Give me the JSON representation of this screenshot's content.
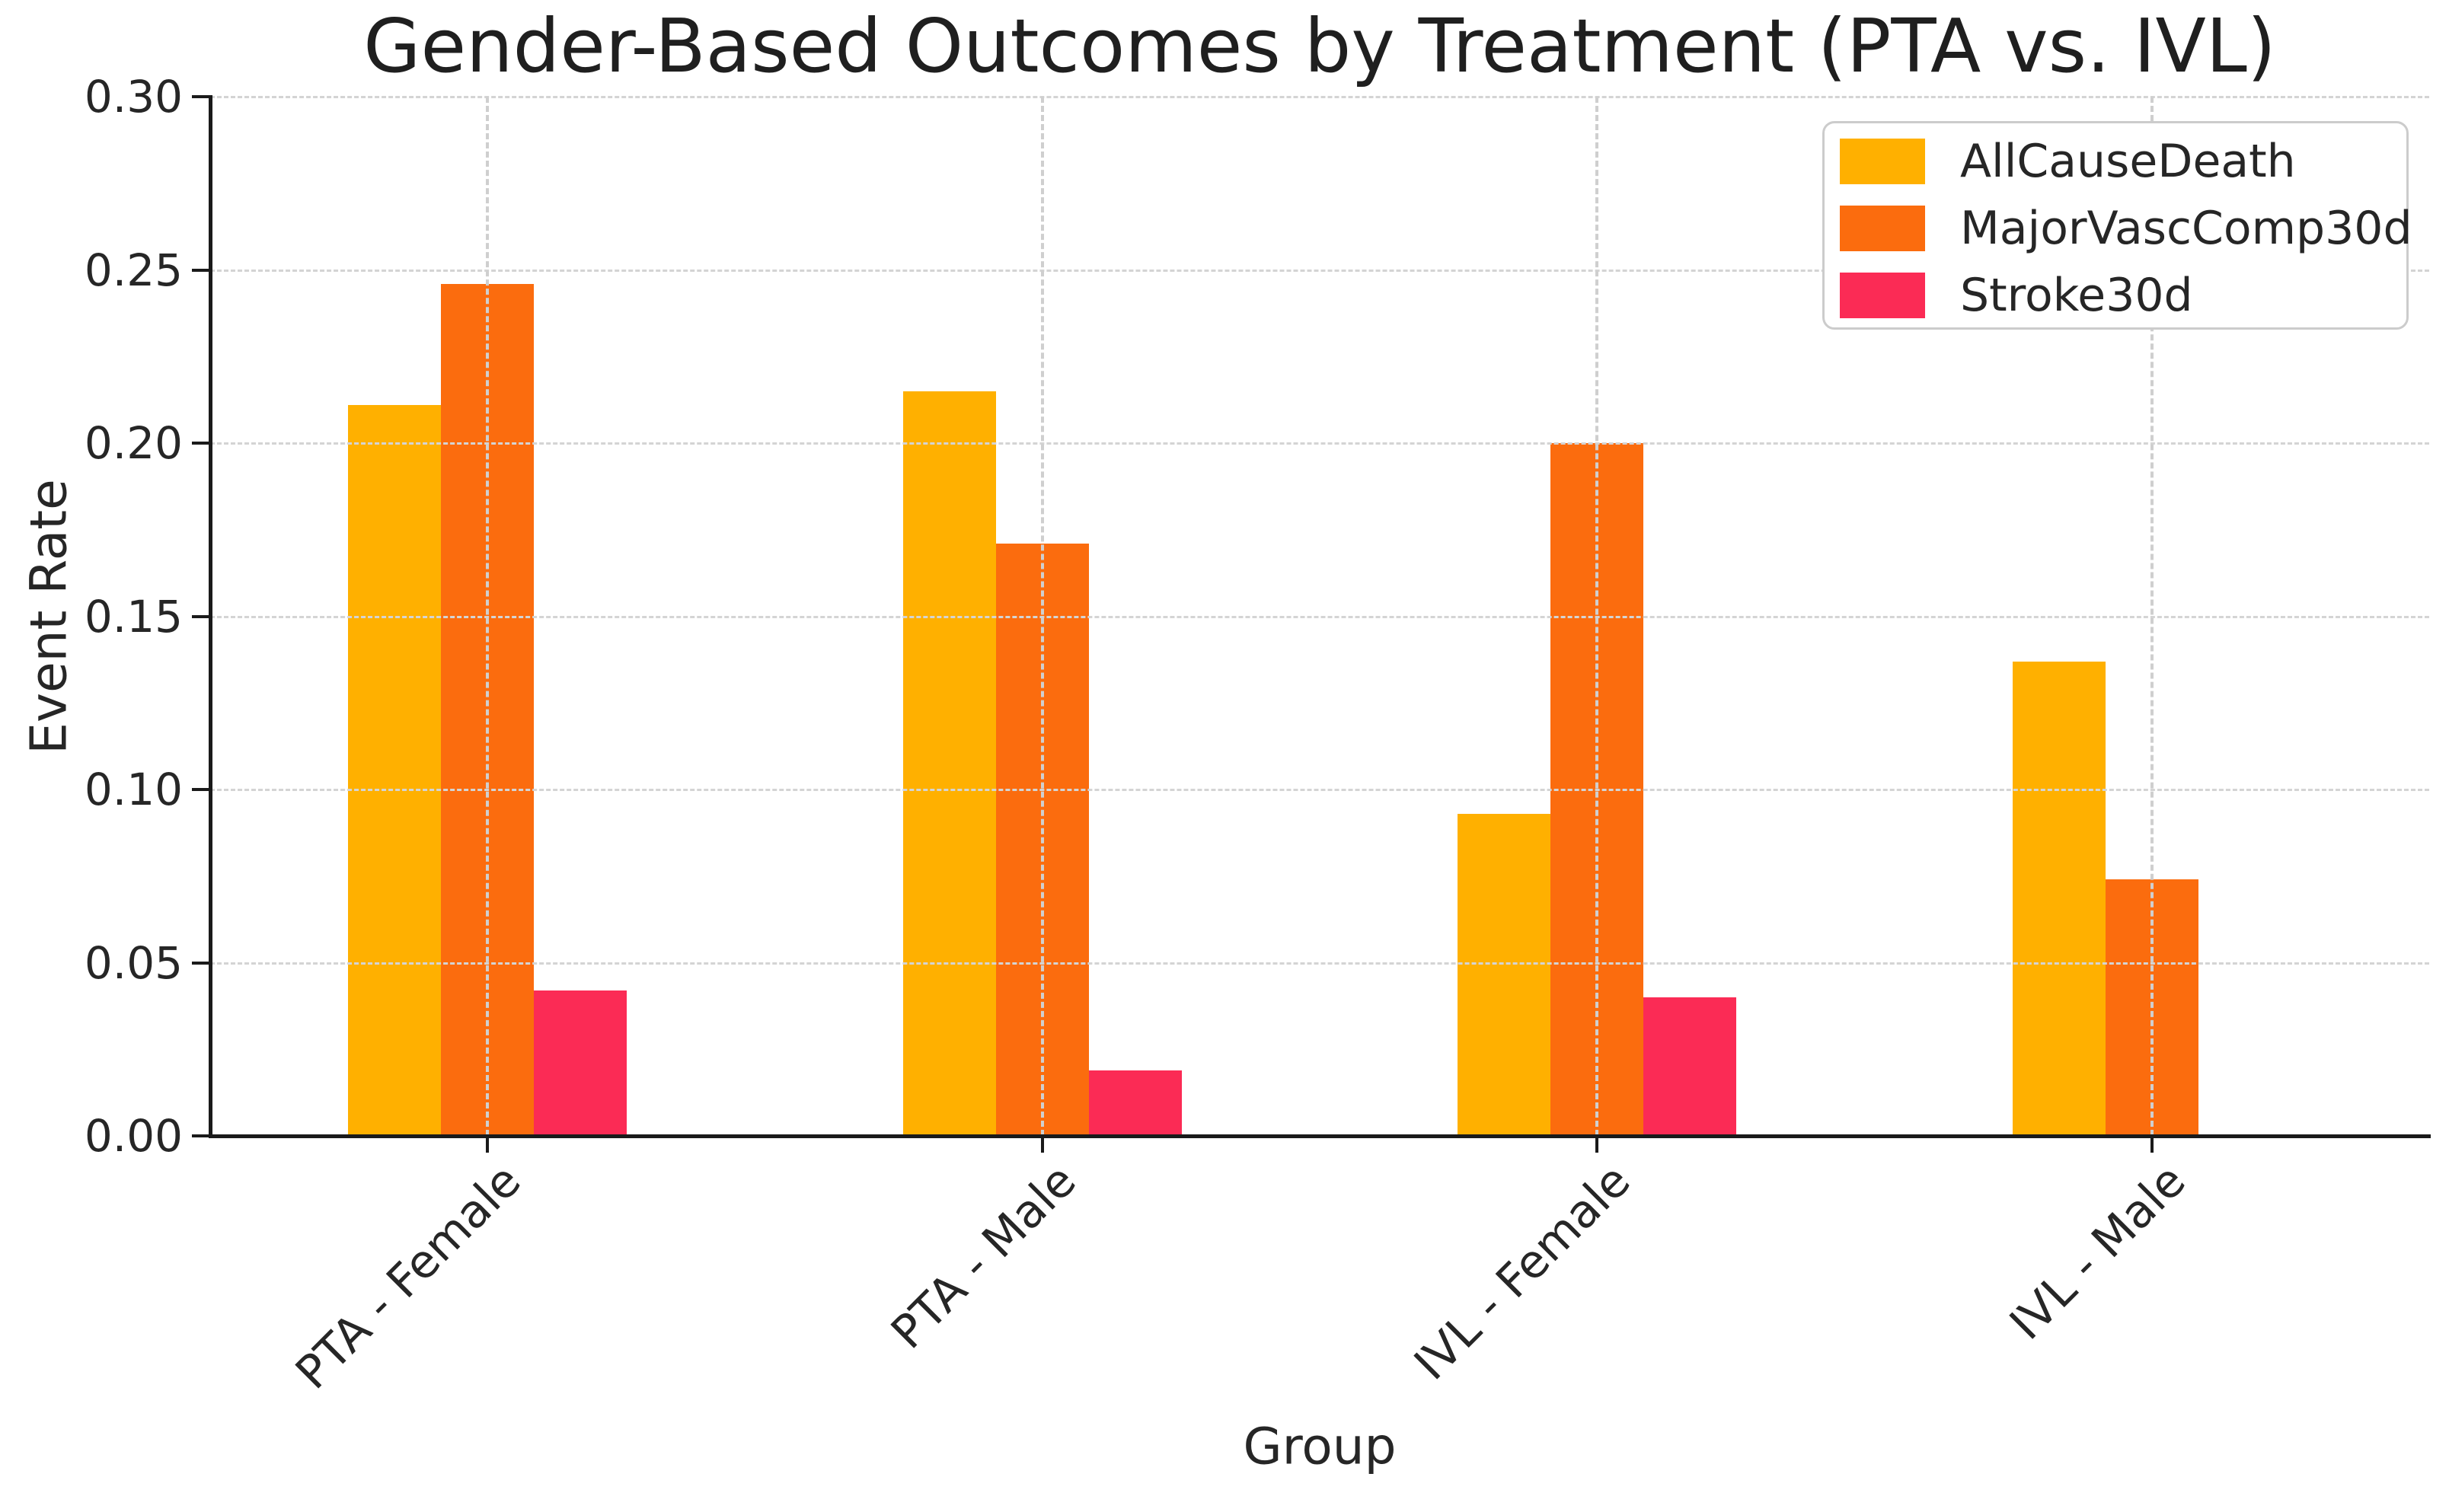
{
  "chart_data": {
    "type": "bar",
    "title": "Gender-Based Outcomes by Treatment (PTA vs. IVL)",
    "xlabel": "Group",
    "ylabel": "Event Rate",
    "categories": [
      "PTA - Female",
      "PTA - Male",
      "IVL - Female",
      "IVL - Male"
    ],
    "series": [
      {
        "name": "AllCauseDeath",
        "color": "#FFB000",
        "values": [
          0.211,
          0.215,
          0.093,
          0.137
        ]
      },
      {
        "name": "MajorVascComp30d",
        "color": "#FB6C0E",
        "values": [
          0.246,
          0.171,
          0.2,
          0.074
        ]
      },
      {
        "name": "Stroke30d",
        "color": "#FB2B55",
        "values": [
          0.042,
          0.019,
          0.04,
          0.0
        ]
      }
    ],
    "ylim": [
      0,
      0.3
    ],
    "yticks": [
      0.0,
      0.05,
      0.1,
      0.15,
      0.2,
      0.25,
      0.3
    ],
    "ytick_labels": [
      "0.00",
      "0.05",
      "0.10",
      "0.15",
      "0.20",
      "0.25",
      "0.30"
    ],
    "grid": "dashed, horizontal at each 0.05 and vertical at each group center, drawn above bars",
    "legend_position": "upper right",
    "colors": {
      "text": "#262626",
      "title_text": "#1f1f1f",
      "grid": "#d4d4d4",
      "spine": "#1a1a1a",
      "legend_border": "#cccccc",
      "background": "#ffffff"
    }
  }
}
